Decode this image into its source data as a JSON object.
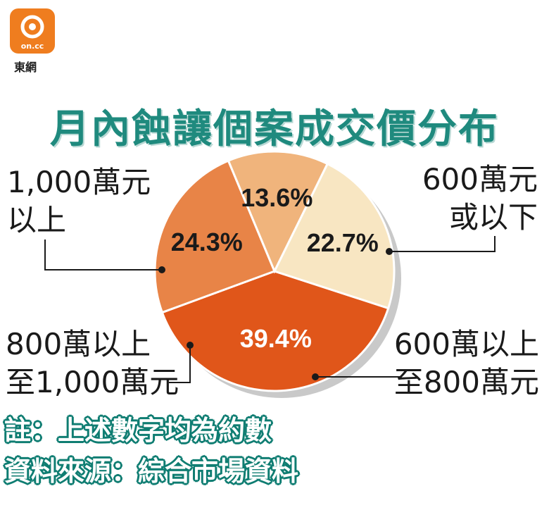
{
  "logo": {
    "brand": "on.cc",
    "name": "東網"
  },
  "chart_data": {
    "type": "pie",
    "title": "月內蝕讓個案成交價分布",
    "slices": [
      {
        "name": "600萬元或以下",
        "label_lines": [
          "600萬元",
          "或以下"
        ],
        "value": 39.4,
        "display": "39.4%",
        "color": "#e0561a"
      },
      {
        "name": "600萬以上至800萬元",
        "label_lines": [
          "600萬以上",
          "至800萬元"
        ],
        "value": 24.3,
        "display": "24.3%",
        "color": "#e88447"
      },
      {
        "name": "800萬以上至1,000萬元",
        "label_lines": [
          "800萬以上",
          "至1,000萬元"
        ],
        "value": 13.6,
        "display": "13.6%",
        "color": "#f0b47c"
      },
      {
        "name": "1,000萬元以上",
        "label_lines": [
          "1,000萬元",
          "以上"
        ],
        "value": 22.7,
        "display": "22.7%",
        "color": "#f8e6c2"
      }
    ]
  },
  "notes": {
    "note": "註：上述數字均為約數",
    "source": "資料來源：綜合市場資料"
  }
}
